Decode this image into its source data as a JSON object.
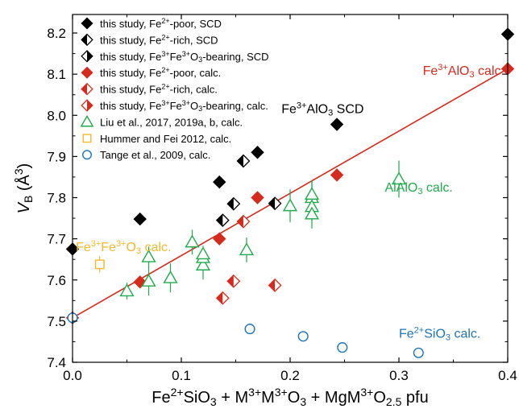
{
  "chart_data": {
    "type": "scatter",
    "xlabel_parts": [
      {
        "t": "Fe",
        "s": null
      },
      {
        "t": "2+",
        "s": "sup"
      },
      {
        "t": "SiO",
        "s": null
      },
      {
        "t": "3",
        "s": "sub"
      },
      {
        "t": " + M",
        "s": null
      },
      {
        "t": "3+",
        "s": "sup"
      },
      {
        "t": "M",
        "s": null
      },
      {
        "t": "3+",
        "s": "sup"
      },
      {
        "t": "O",
        "s": null
      },
      {
        "t": "3",
        "s": "sub"
      },
      {
        "t": " + MgM",
        "s": null
      },
      {
        "t": "3+",
        "s": "sup"
      },
      {
        "t": "O",
        "s": null
      },
      {
        "t": "2.5",
        "s": "sub"
      },
      {
        "t": " pfu",
        "s": null
      }
    ],
    "ylabel_parts": [
      {
        "t": "V",
        "s": "ital"
      },
      {
        "t": "B",
        "s": "sub"
      },
      {
        "t": " (Å",
        "s": null
      },
      {
        "t": "3",
        "s": "sup"
      },
      {
        "t": ")",
        "s": null
      }
    ],
    "xlim": [
      0.0,
      0.4
    ],
    "ylim": [
      7.4,
      8.25
    ],
    "xticks": [
      "0.0",
      "0.1",
      "0.2",
      "0.3",
      "0.4"
    ],
    "yticks": [
      "7.4",
      "7.5",
      "7.6",
      "7.7",
      "7.8",
      "7.9",
      "8.0",
      "8.1",
      "8.2"
    ],
    "xtick_values": [
      0.0,
      0.1,
      0.2,
      0.3,
      0.4
    ],
    "ytick_values": [
      7.4,
      7.5,
      7.6,
      7.7,
      7.8,
      7.9,
      8.0,
      8.1,
      8.2
    ],
    "fit_line": {
      "x": [
        0.0,
        0.4
      ],
      "y": [
        7.508,
        8.113
      ],
      "color": "#d52b1e"
    },
    "series": [
      {
        "name_parts": [
          {
            "t": "this study, Fe",
            "s": null
          },
          {
            "t": "2+",
            "s": "sup"
          },
          {
            "t": "-poor, SCD",
            "s": null
          }
        ],
        "marker": "diamond-full",
        "color": "#000000",
        "x": [
          0.0,
          0.062,
          0.135,
          0.17,
          0.243,
          0.4
        ],
        "y": [
          7.675,
          7.748,
          7.838,
          7.91,
          7.978,
          8.197
        ]
      },
      {
        "name_parts": [
          {
            "t": "this study, Fe",
            "s": null
          },
          {
            "t": "2+",
            "s": "sup"
          },
          {
            "t": "-rich, SCD",
            "s": null
          }
        ],
        "marker": "diamond-left",
        "color": "#000000",
        "x": [
          0.138,
          0.148,
          0.157,
          0.186
        ],
        "y": [
          7.745,
          7.785,
          7.889,
          7.786
        ]
      },
      {
        "name_parts": [
          {
            "t": "this study, Fe",
            "s": null
          },
          {
            "t": "3+",
            "s": "sup"
          },
          {
            "t": "Fe",
            "s": null
          },
          {
            "t": "3+",
            "s": "sup"
          },
          {
            "t": "O",
            "s": null
          },
          {
            "t": "3",
            "s": "sub"
          },
          {
            "t": "-bearing, SCD",
            "s": null
          }
        ],
        "marker": "diamond-right",
        "color": "#000000",
        "x": [],
        "y": []
      },
      {
        "name_parts": [
          {
            "t": "this study, Fe",
            "s": null
          },
          {
            "t": "2+",
            "s": "sup"
          },
          {
            "t": "-poor, calc.",
            "s": null
          }
        ],
        "marker": "diamond-full",
        "color": "#d52b1e",
        "x": [
          0.0,
          0.062,
          0.135,
          0.17,
          0.243,
          0.4
        ],
        "y": [
          7.508,
          7.595,
          7.7,
          7.8,
          7.855,
          8.113
        ]
      },
      {
        "name_parts": [
          {
            "t": "this study, Fe",
            "s": null
          },
          {
            "t": "2+",
            "s": "sup"
          },
          {
            "t": "-rich, calc.",
            "s": null
          }
        ],
        "marker": "diamond-left",
        "color": "#d52b1e",
        "x": [
          0.138,
          0.148,
          0.157,
          0.186
        ],
        "y": [
          7.556,
          7.597,
          7.742,
          7.587
        ]
      },
      {
        "name_parts": [
          {
            "t": "this study, Fe",
            "s": null
          },
          {
            "t": "3+",
            "s": "sup"
          },
          {
            "t": "Fe",
            "s": null
          },
          {
            "t": "3+",
            "s": "sup"
          },
          {
            "t": "O",
            "s": null
          },
          {
            "t": "3",
            "s": "sub"
          },
          {
            "t": "-bearing, calc.",
            "s": null
          }
        ],
        "marker": "diamond-right",
        "color": "#d52b1e",
        "x": [],
        "y": []
      },
      {
        "name_parts": [
          {
            "t": "Liu et al., 2017, 2019a, b, calc.",
            "s": null
          }
        ],
        "marker": "triangle-open",
        "color": "#1faa4b",
        "x": [
          0.05,
          0.07,
          0.07,
          0.09,
          0.11,
          0.12,
          0.12,
          0.12,
          0.16,
          0.2,
          0.22,
          0.22,
          0.22,
          0.22,
          0.3
        ],
        "y": [
          7.573,
          7.597,
          7.656,
          7.605,
          7.692,
          7.636,
          7.654,
          7.663,
          7.673,
          7.78,
          7.8,
          7.808,
          7.778,
          7.76,
          7.845
        ],
        "err": [
          0.02,
          0.035,
          0.025,
          0.035,
          0.03,
          0.035,
          0.02,
          0.02,
          0.03,
          0.04,
          0.04,
          0.035,
          0.035,
          0.035,
          0.045
        ]
      },
      {
        "name_parts": [
          {
            "t": "Hummer and Fei 2012, calc.",
            "s": null
          }
        ],
        "marker": "square-open",
        "color": "#f3b928",
        "x": [
          0.025
        ],
        "y": [
          7.638
        ],
        "err": [
          0.02
        ]
      },
      {
        "name_parts": [
          {
            "t": "Tange et al., 2009, calc.",
            "s": null
          }
        ],
        "marker": "circle-open",
        "color": "#1f74b8",
        "x": [
          0.0,
          0.163,
          0.212,
          0.248,
          0.318
        ],
        "y": [
          7.508,
          7.481,
          7.463,
          7.436,
          7.423
        ]
      }
    ],
    "annotations": [
      {
        "parts": [
          {
            "t": "Fe",
            "s": null
          },
          {
            "t": "3+",
            "s": "sup"
          },
          {
            "t": "AlO",
            "s": null
          },
          {
            "t": "3",
            "s": "sub"
          },
          {
            "t": " calc.",
            "s": null
          }
        ],
        "x": 0.397,
        "y": 8.098,
        "anchor": "end",
        "color": "#d52b1e"
      },
      {
        "parts": [
          {
            "t": "Fe",
            "s": null
          },
          {
            "t": "3+",
            "s": "sup"
          },
          {
            "t": "AlO",
            "s": null
          },
          {
            "t": "3",
            "s": "sub"
          },
          {
            "t": " SCD",
            "s": null
          }
        ],
        "x": 0.192,
        "y": 8.005,
        "anchor": "start",
        "color": "#000000"
      },
      {
        "parts": [
          {
            "t": "AlAlO",
            "s": null
          },
          {
            "t": "3",
            "s": "sub"
          },
          {
            "t": " calc.",
            "s": null
          }
        ],
        "x": 0.287,
        "y": 7.815,
        "anchor": "start",
        "color": "#1faa4b"
      },
      {
        "parts": [
          {
            "t": "Fe",
            "s": null
          },
          {
            "t": "3+",
            "s": "sup"
          },
          {
            "t": "Fe",
            "s": null
          },
          {
            "t": "3+",
            "s": "sup"
          },
          {
            "t": "O",
            "s": null
          },
          {
            "t": "3",
            "s": "sub"
          },
          {
            "t": " calc.",
            "s": null
          }
        ],
        "x": 0.003,
        "y": 7.67,
        "anchor": "start",
        "color": "#f3b928"
      },
      {
        "parts": [
          {
            "t": "Fe",
            "s": null
          },
          {
            "t": "2+",
            "s": "sup"
          },
          {
            "t": "SiO",
            "s": null
          },
          {
            "t": "3",
            "s": "sub"
          },
          {
            "t": " calc.",
            "s": null
          }
        ],
        "x": 0.3,
        "y": 7.46,
        "anchor": "start",
        "color": "#1f74b8"
      }
    ],
    "legend_position": "top-left",
    "grid": false
  }
}
